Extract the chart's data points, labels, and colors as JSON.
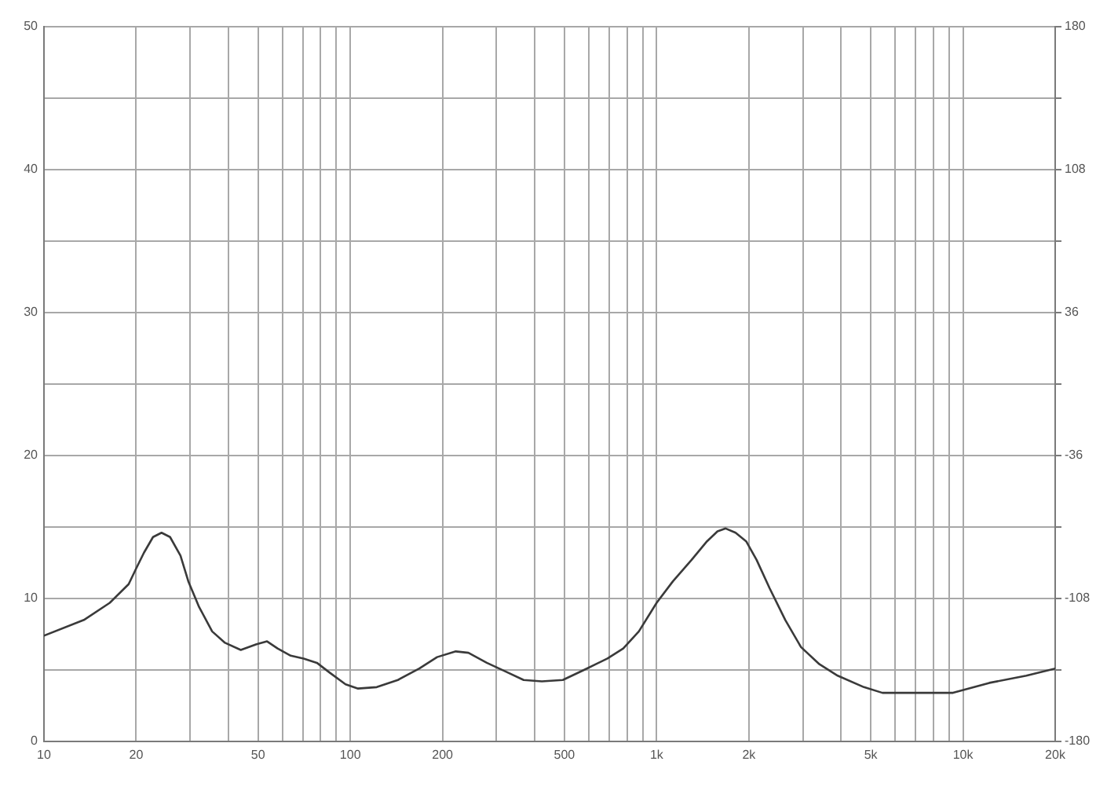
{
  "chart_data": {
    "type": "line",
    "x": [
      10,
      13.5,
      16.4,
      18.9,
      20,
      21.2,
      22.7,
      24.2,
      25.8,
      27.9,
      29.6,
      32.1,
      35.4,
      39,
      43.9,
      49.4,
      53.5,
      57.9,
      63.9,
      70.4,
      77.8,
      85.8,
      96.5,
      106,
      122,
      143,
      168,
      192,
      221,
      243,
      279,
      321,
      368,
      422,
      494,
      579,
      691,
      778,
      875,
      1000,
      1130,
      1300,
      1460,
      1580,
      1680,
      1810,
      1960,
      2120,
      2340,
      2630,
      2960,
      3400,
      3900,
      4750,
      5460,
      6770,
      9280,
      12200,
      16100,
      20000
    ],
    "series": [
      {
        "color": "#3a3a3a",
        "values": [
          7.4,
          8.5,
          9.7,
          11,
          12.1,
          13.2,
          14.3,
          14.6,
          14.3,
          13,
          11.2,
          9.4,
          7.7,
          6.9,
          6.4,
          6.8,
          7,
          6.5,
          6,
          5.8,
          5.5,
          4.8,
          4,
          3.7,
          3.8,
          4.3,
          5.1,
          5.9,
          6.3,
          6.2,
          5.5,
          4.9,
          4.3,
          4.2,
          4.3,
          5,
          5.8,
          6.5,
          7.7,
          9.7,
          11.2,
          12.7,
          14,
          14.7,
          14.9,
          14.6,
          14,
          12.7,
          10.7,
          8.5,
          6.6,
          5.4,
          4.6,
          3.8,
          3.4,
          3.4,
          3.4,
          4.1,
          4.6,
          5.1
        ]
      }
    ],
    "log": "x",
    "xlim": [
      10,
      20000
    ],
    "xticks": [
      10,
      20,
      {
        "value": 30,
        "label": null
      },
      {
        "value": 40,
        "label": null
      },
      50,
      {
        "value": 60,
        "label": null
      },
      {
        "value": 70,
        "label": null
      },
      {
        "value": 80,
        "label": null
      },
      {
        "value": 90,
        "label": null
      },
      100,
      200,
      {
        "value": 300,
        "label": null
      },
      {
        "value": 400,
        "label": null
      },
      500,
      {
        "value": 600,
        "label": null
      },
      {
        "value": 700,
        "label": null
      },
      {
        "value": 800,
        "label": null
      },
      {
        "value": 900,
        "label": null
      },
      {
        "value": 1000,
        "label": "1k"
      },
      {
        "value": 2000,
        "label": "2k"
      },
      {
        "value": 3000,
        "label": null
      },
      {
        "value": 4000,
        "label": null
      },
      {
        "value": 5000,
        "label": "5k"
      },
      {
        "value": 6000,
        "label": null
      },
      {
        "value": 7000,
        "label": null
      },
      {
        "value": 8000,
        "label": null
      },
      {
        "value": 9000,
        "label": null
      },
      {
        "value": 10000,
        "label": "10k"
      },
      {
        "value": 20000,
        "label": "20k"
      }
    ],
    "ylim": [
      0,
      50
    ],
    "yticks": [
      0,
      {
        "value": 5,
        "label": null
      },
      10,
      {
        "value": 15,
        "label": null
      },
      20,
      {
        "value": 25,
        "label": null
      },
      30,
      {
        "value": 35,
        "label": null
      },
      40,
      {
        "value": 45,
        "label": null
      },
      50
    ],
    "y2lim": [
      -180,
      180
    ],
    "y2ticks": [
      -180,
      {
        "value": -144,
        "label": null
      },
      -108,
      {
        "value": -72,
        "label": null
      },
      -36,
      {
        "value": 0,
        "label": null
      },
      36,
      {
        "value": 72,
        "label": null
      },
      108,
      {
        "value": 144,
        "label": null
      },
      180
    ],
    "grid": true,
    "marker": "none",
    "line_style": "solid"
  }
}
